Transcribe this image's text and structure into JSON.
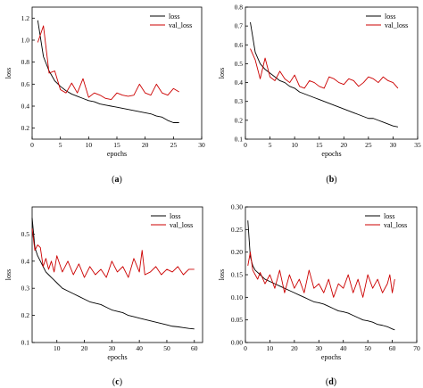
{
  "chart_data": [
    {
      "panel": "a",
      "caption_open": "(",
      "caption_letter": "a",
      "caption_close": ")",
      "type": "line",
      "xlabel": "epochs",
      "ylabel": "loss",
      "xlim": [
        0,
        30
      ],
      "ylim": [
        0.1,
        1.3
      ],
      "xticks": [
        0,
        5,
        10,
        15,
        20,
        25,
        30
      ],
      "yticks": [
        0.2,
        0.4,
        0.6,
        0.8,
        1.0,
        1.2
      ],
      "ytick_labels": [
        "0.2",
        "0.4",
        "0.6",
        "0.8",
        "1.0",
        "1.2"
      ],
      "legend_position": "top-right",
      "grid": false,
      "series": [
        {
          "name": "loss",
          "color": "#000000",
          "x": [
            1,
            2,
            3,
            4,
            5,
            6,
            7,
            8,
            9,
            10,
            11,
            12,
            13,
            14,
            15,
            16,
            17,
            18,
            19,
            20,
            21,
            22,
            23,
            24,
            25,
            26
          ],
          "y": [
            1.18,
            0.85,
            0.72,
            0.63,
            0.58,
            0.54,
            0.51,
            0.49,
            0.47,
            0.45,
            0.44,
            0.42,
            0.41,
            0.4,
            0.39,
            0.38,
            0.37,
            0.36,
            0.35,
            0.34,
            0.33,
            0.31,
            0.3,
            0.27,
            0.25,
            0.25
          ]
        },
        {
          "name": "val_loss",
          "color": "#cc0000",
          "x": [
            1,
            2,
            3,
            4,
            5,
            6,
            7,
            8,
            9,
            10,
            11,
            12,
            13,
            14,
            15,
            16,
            17,
            18,
            19,
            20,
            21,
            22,
            23,
            24,
            25,
            26
          ],
          "y": [
            0.98,
            1.13,
            0.7,
            0.72,
            0.55,
            0.52,
            0.61,
            0.52,
            0.65,
            0.48,
            0.52,
            0.5,
            0.47,
            0.46,
            0.52,
            0.5,
            0.49,
            0.5,
            0.6,
            0.52,
            0.5,
            0.6,
            0.52,
            0.5,
            0.56,
            0.53
          ]
        }
      ]
    },
    {
      "panel": "b",
      "caption_open": "(",
      "caption_letter": "b",
      "caption_close": ")",
      "type": "line",
      "xlabel": "epochs",
      "ylabel": "loss",
      "xlim": [
        0,
        35
      ],
      "ylim": [
        0.1,
        0.8
      ],
      "xticks": [
        0,
        5,
        10,
        15,
        20,
        25,
        30,
        35
      ],
      "yticks": [
        0.1,
        0.2,
        0.3,
        0.4,
        0.5,
        0.6,
        0.7,
        0.8
      ],
      "ytick_labels": [
        "0.1",
        "0.2",
        "0.3",
        "0.4",
        "0.5",
        "0.6",
        "0.7",
        "0.8"
      ],
      "legend_position": "top-right",
      "grid": false,
      "series": [
        {
          "name": "loss",
          "color": "#000000",
          "x": [
            1,
            2,
            3,
            4,
            5,
            6,
            7,
            8,
            9,
            10,
            11,
            12,
            13,
            14,
            15,
            16,
            17,
            18,
            19,
            20,
            21,
            22,
            23,
            24,
            25,
            26,
            27,
            28,
            29,
            30,
            31
          ],
          "y": [
            0.72,
            0.56,
            0.5,
            0.47,
            0.45,
            0.43,
            0.41,
            0.4,
            0.38,
            0.37,
            0.35,
            0.34,
            0.33,
            0.32,
            0.31,
            0.3,
            0.29,
            0.28,
            0.27,
            0.26,
            0.25,
            0.24,
            0.23,
            0.22,
            0.21,
            0.21,
            0.2,
            0.19,
            0.18,
            0.17,
            0.165
          ]
        },
        {
          "name": "val_loss",
          "color": "#cc0000",
          "x": [
            1,
            2,
            3,
            4,
            5,
            6,
            7,
            8,
            9,
            10,
            11,
            12,
            13,
            14,
            15,
            16,
            17,
            18,
            19,
            20,
            21,
            22,
            23,
            24,
            25,
            26,
            27,
            28,
            29,
            30,
            31
          ],
          "y": [
            0.58,
            0.52,
            0.42,
            0.53,
            0.43,
            0.41,
            0.46,
            0.42,
            0.4,
            0.44,
            0.38,
            0.37,
            0.41,
            0.4,
            0.38,
            0.37,
            0.43,
            0.42,
            0.4,
            0.39,
            0.42,
            0.41,
            0.38,
            0.4,
            0.43,
            0.42,
            0.4,
            0.43,
            0.41,
            0.4,
            0.37
          ]
        }
      ]
    },
    {
      "panel": "c",
      "caption_open": "(",
      "caption_letter": "c",
      "caption_close": ")",
      "type": "line",
      "xlabel": "epochs",
      "ylabel": "loss",
      "xlim": [
        1,
        63
      ],
      "ylim": [
        0.1,
        0.6
      ],
      "xticks": [
        10,
        20,
        30,
        40,
        50,
        60
      ],
      "yticks": [
        0.1,
        0.2,
        0.3,
        0.4,
        0.5
      ],
      "ytick_labels": [
        "0.1",
        "0.2",
        "0.3",
        "0.4",
        "0.5"
      ],
      "legend_position": "top-right",
      "grid": false,
      "series": [
        {
          "name": "loss",
          "color": "#000000",
          "x": [
            1,
            2,
            3,
            4,
            5,
            6,
            7,
            8,
            9,
            10,
            12,
            14,
            16,
            18,
            20,
            22,
            24,
            26,
            28,
            30,
            32,
            34,
            36,
            38,
            40,
            42,
            44,
            46,
            48,
            50,
            52,
            54,
            56,
            58,
            60
          ],
          "y": [
            0.56,
            0.45,
            0.42,
            0.4,
            0.38,
            0.36,
            0.35,
            0.34,
            0.33,
            0.32,
            0.3,
            0.29,
            0.28,
            0.27,
            0.26,
            0.25,
            0.245,
            0.24,
            0.23,
            0.22,
            0.215,
            0.21,
            0.2,
            0.195,
            0.19,
            0.185,
            0.18,
            0.175,
            0.17,
            0.165,
            0.16,
            0.158,
            0.155,
            0.152,
            0.15
          ]
        },
        {
          "name": "val_loss",
          "color": "#cc0000",
          "x": [
            1,
            2,
            3,
            4,
            5,
            6,
            7,
            8,
            9,
            10,
            12,
            14,
            16,
            18,
            20,
            22,
            24,
            26,
            28,
            30,
            32,
            34,
            36,
            38,
            40,
            41,
            42,
            44,
            46,
            48,
            50,
            52,
            54,
            56,
            58,
            60
          ],
          "y": [
            0.52,
            0.44,
            0.46,
            0.45,
            0.38,
            0.41,
            0.37,
            0.4,
            0.36,
            0.42,
            0.36,
            0.4,
            0.35,
            0.39,
            0.34,
            0.38,
            0.35,
            0.37,
            0.34,
            0.4,
            0.36,
            0.38,
            0.34,
            0.41,
            0.36,
            0.44,
            0.35,
            0.36,
            0.38,
            0.35,
            0.37,
            0.36,
            0.38,
            0.35,
            0.37,
            0.37
          ]
        }
      ]
    },
    {
      "panel": "d",
      "caption_open": "(",
      "caption_letter": "d",
      "caption_close": ")",
      "type": "line",
      "xlabel": "epochs",
      "ylabel": "loss",
      "xlim": [
        0,
        70
      ],
      "ylim": [
        0.0,
        0.3
      ],
      "xticks": [
        0,
        10,
        20,
        30,
        40,
        50,
        60,
        70
      ],
      "yticks": [
        0.0,
        0.05,
        0.1,
        0.15,
        0.2,
        0.25,
        0.3
      ],
      "ytick_labels": [
        "0.00",
        "0.05",
        "0.10",
        "0.15",
        "0.20",
        "0.25",
        "0.30"
      ],
      "legend_position": "top-right",
      "grid": false,
      "series": [
        {
          "name": "loss",
          "color": "#000000",
          "x": [
            1,
            2,
            3,
            4,
            5,
            6,
            8,
            10,
            12,
            14,
            16,
            18,
            20,
            22,
            24,
            26,
            28,
            30,
            32,
            34,
            36,
            38,
            40,
            42,
            44,
            46,
            48,
            50,
            52,
            54,
            56,
            58,
            60,
            61
          ],
          "y": [
            0.27,
            0.19,
            0.17,
            0.16,
            0.155,
            0.15,
            0.14,
            0.135,
            0.13,
            0.125,
            0.12,
            0.115,
            0.11,
            0.105,
            0.1,
            0.095,
            0.09,
            0.088,
            0.085,
            0.08,
            0.075,
            0.07,
            0.068,
            0.065,
            0.06,
            0.055,
            0.05,
            0.048,
            0.045,
            0.04,
            0.038,
            0.035,
            0.03,
            0.028
          ]
        },
        {
          "name": "val_loss",
          "color": "#cc0000",
          "x": [
            1,
            2,
            3,
            4,
            5,
            6,
            8,
            10,
            12,
            14,
            16,
            18,
            20,
            22,
            24,
            26,
            28,
            30,
            32,
            34,
            36,
            38,
            40,
            42,
            44,
            46,
            48,
            50,
            52,
            54,
            56,
            58,
            59,
            60,
            61
          ],
          "y": [
            0.17,
            0.2,
            0.16,
            0.15,
            0.14,
            0.155,
            0.13,
            0.15,
            0.12,
            0.16,
            0.11,
            0.15,
            0.12,
            0.14,
            0.11,
            0.16,
            0.12,
            0.13,
            0.11,
            0.14,
            0.1,
            0.13,
            0.12,
            0.15,
            0.11,
            0.14,
            0.1,
            0.15,
            0.12,
            0.14,
            0.11,
            0.13,
            0.15,
            0.11,
            0.14
          ]
        }
      ]
    }
  ]
}
